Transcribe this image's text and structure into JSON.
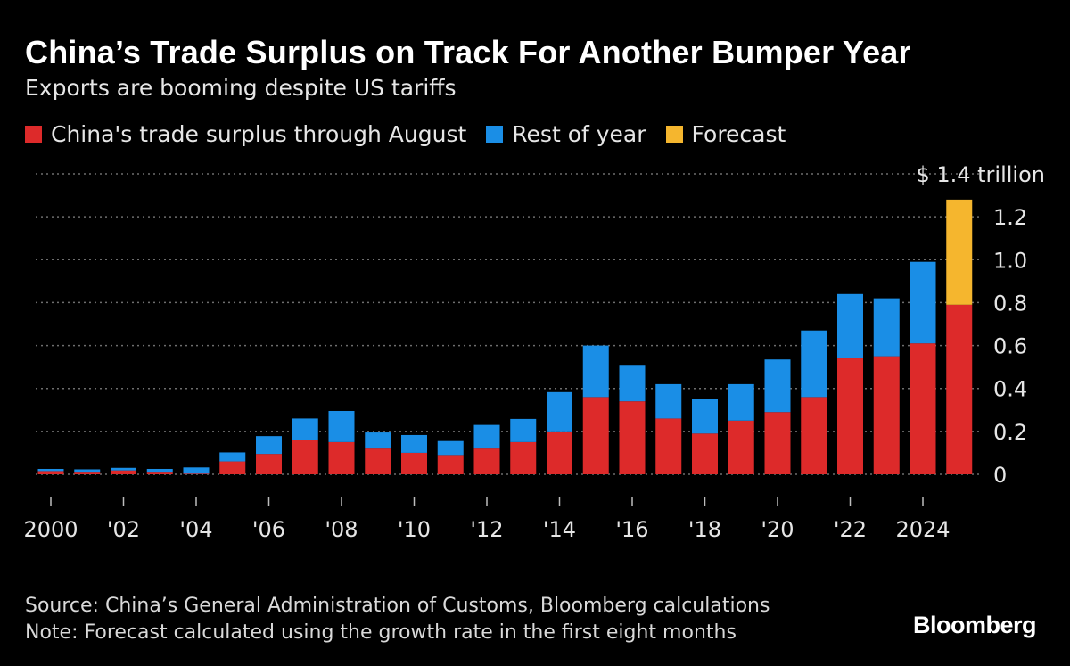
{
  "title": "China’s Trade Surplus on Track For Another Bumper Year",
  "subtitle": "Exports are booming despite US tariffs",
  "legend": [
    {
      "label": "China's trade surplus through August",
      "color": "#dd2a2a"
    },
    {
      "label": "Rest of year",
      "color": "#1a8ee6"
    },
    {
      "label": "Forecast",
      "color": "#f5b62e"
    }
  ],
  "colors": {
    "background": "#000000",
    "gridline": "#6e6e6e",
    "text": "#e6e6e6"
  },
  "source": "Source: China’s General Administration of Customs, Bloomberg calculations",
  "note": "Note: Forecast calculated using the growth rate in the first eight months",
  "brand": "Bloomberg",
  "chart_data": {
    "type": "bar",
    "stacked": true,
    "title": "China’s Trade Surplus on Track For Another Bumper Year",
    "ylabel": "$ trillion",
    "unit_label": "$ 1.4 trillion",
    "ylim": [
      0,
      1.4
    ],
    "yticks": [
      0,
      0.2,
      0.4,
      0.6,
      0.8,
      1.0,
      1.2
    ],
    "ytick_labels": [
      "0",
      "0.2",
      "0.4",
      "0.6",
      "0.8",
      "1.0",
      "1.2"
    ],
    "categories": [
      "2000",
      "2001",
      "2002",
      "2003",
      "2004",
      "2005",
      "2006",
      "2007",
      "2008",
      "2009",
      "2010",
      "2011",
      "2012",
      "2013",
      "2014",
      "2015",
      "2016",
      "2017",
      "2018",
      "2019",
      "2020",
      "2021",
      "2022",
      "2023",
      "2024",
      "2025"
    ],
    "xtick_labels": [
      {
        "index": 0,
        "label": "2000"
      },
      {
        "index": 2,
        "label": "'02"
      },
      {
        "index": 4,
        "label": "'04"
      },
      {
        "index": 6,
        "label": "'06"
      },
      {
        "index": 8,
        "label": "'08"
      },
      {
        "index": 10,
        "label": "'10"
      },
      {
        "index": 12,
        "label": "'12"
      },
      {
        "index": 14,
        "label": "'14"
      },
      {
        "index": 16,
        "label": "'16"
      },
      {
        "index": 18,
        "label": "'18"
      },
      {
        "index": 20,
        "label": "'20"
      },
      {
        "index": 22,
        "label": "'22"
      },
      {
        "index": 24,
        "label": "2024"
      }
    ],
    "series": [
      {
        "name": "China's trade surplus through August",
        "values": [
          0.015,
          0.012,
          0.018,
          0.012,
          0.003,
          0.06,
          0.095,
          0.16,
          0.15,
          0.12,
          0.1,
          0.09,
          0.12,
          0.15,
          0.2,
          0.36,
          0.34,
          0.26,
          0.19,
          0.25,
          0.29,
          0.36,
          0.54,
          0.55,
          0.61,
          0.79
        ]
      },
      {
        "name": "Rest of year",
        "values": [
          0.01,
          0.011,
          0.012,
          0.013,
          0.029,
          0.042,
          0.083,
          0.1,
          0.145,
          0.075,
          0.083,
          0.065,
          0.11,
          0.108,
          0.183,
          0.24,
          0.17,
          0.16,
          0.16,
          0.17,
          0.245,
          0.31,
          0.3,
          0.27,
          0.38,
          0
        ]
      },
      {
        "name": "Forecast",
        "values": [
          0,
          0,
          0,
          0,
          0,
          0,
          0,
          0,
          0,
          0,
          0,
          0,
          0,
          0,
          0,
          0,
          0,
          0,
          0,
          0,
          0,
          0,
          0,
          0,
          0,
          0.49
        ]
      }
    ]
  }
}
